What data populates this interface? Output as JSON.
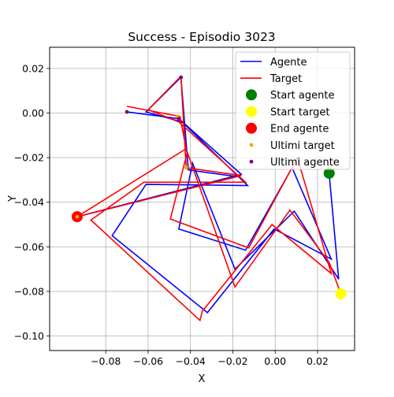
{
  "chart_data": {
    "type": "line",
    "title": "Success - Episodio 3023",
    "xlabel": "X",
    "ylabel": "Y",
    "xlim": [
      -0.1065,
      0.0375
    ],
    "ylim": [
      -0.1065,
      0.0295
    ],
    "xticks": [
      -0.08,
      -0.06,
      -0.04,
      -0.02,
      0.0,
      0.02
    ],
    "xtick_labels": [
      "−0.08",
      "−0.06",
      "−0.04",
      "−0.02",
      "0.00",
      "0.02"
    ],
    "yticks": [
      0.02,
      0.0,
      -0.02,
      -0.04,
      -0.06,
      -0.08,
      -0.1
    ],
    "ytick_labels": [
      "0.02",
      "0.00",
      "−0.02",
      "−0.04",
      "−0.06",
      "−0.08",
      "−0.10"
    ],
    "grid": true,
    "legend_position": "top-right",
    "series": [
      {
        "name": "Agente",
        "kind": "line",
        "color": "#0000ff",
        "points": [
          [
            0.0255,
            -0.0275
          ],
          [
            0.03,
            -0.0745
          ],
          [
            0.009,
            -0.044
          ],
          [
            -0.019,
            -0.07
          ],
          [
            -0.039,
            -0.0225
          ],
          [
            -0.0455,
            -0.052
          ],
          [
            -0.014,
            -0.0615
          ],
          [
            0.008,
            -0.0245
          ],
          [
            0.0265,
            -0.0655
          ],
          [
            -0.0005,
            -0.052
          ],
          [
            -0.032,
            -0.0895
          ],
          [
            -0.077,
            -0.055
          ],
          [
            -0.061,
            -0.032
          ],
          [
            -0.013,
            -0.0325
          ],
          [
            -0.044,
            -0.004
          ],
          [
            -0.061,
            0.0005
          ],
          [
            -0.0445,
            0.016
          ],
          [
            -0.041,
            -0.0255
          ],
          [
            -0.018,
            -0.0285
          ],
          [
            -0.0935,
            -0.0465
          ],
          [
            -0.016,
            -0.0275
          ],
          [
            -0.0455,
            -0.0025
          ],
          [
            -0.07,
            0.0005
          ]
        ]
      },
      {
        "name": "Target",
        "kind": "line",
        "color": "#ff0000",
        "points": [
          [
            0.031,
            -0.081
          ],
          [
            0.0255,
            -0.067
          ],
          [
            0.007,
            -0.0435
          ],
          [
            -0.019,
            -0.078
          ],
          [
            -0.0415,
            -0.0175
          ],
          [
            -0.0495,
            -0.0475
          ],
          [
            -0.0125,
            -0.0605
          ],
          [
            0.0105,
            -0.02
          ],
          [
            0.0265,
            -0.072
          ],
          [
            -0.0015,
            -0.05
          ],
          [
            -0.0345,
            -0.089
          ],
          [
            -0.0345,
            -0.089
          ],
          [
            -0.0345,
            -0.089
          ],
          [
            -0.0345,
            -0.089
          ],
          [
            -0.0345,
            -0.089
          ],
          [
            -0.0345,
            -0.089
          ],
          [
            -0.0345,
            -0.089
          ],
          [
            -0.0345,
            -0.089
          ],
          [
            -0.0345,
            -0.089
          ],
          [
            -0.0345,
            -0.089
          ],
          [
            -0.0345,
            -0.089
          ],
          [
            -0.0355,
            -0.093
          ],
          [
            -0.087,
            -0.048
          ],
          [
            -0.062,
            -0.031
          ],
          [
            -0.014,
            -0.031
          ],
          [
            -0.0455,
            -0.004
          ],
          [
            -0.06,
            0.0015
          ],
          [
            -0.0445,
            0.0165
          ],
          [
            -0.042,
            -0.0245
          ],
          [
            -0.016,
            -0.028
          ],
          [
            -0.0935,
            -0.0465
          ],
          [
            -0.042,
            -0.016
          ],
          [
            -0.045,
            -0.0015
          ],
          [
            -0.07,
            0.003
          ]
        ]
      },
      {
        "name": "Start agente",
        "kind": "marker",
        "color": "#008000",
        "points": [
          [
            0.0255,
            -0.027
          ]
        ]
      },
      {
        "name": "Start target",
        "kind": "marker",
        "color": "#ffff00",
        "points": [
          [
            0.031,
            -0.081
          ]
        ]
      },
      {
        "name": "End agente",
        "kind": "marker",
        "color": "#ff0000",
        "points": [
          [
            -0.0935,
            -0.0465
          ]
        ]
      },
      {
        "name": "Ultimi target",
        "kind": "small-marker",
        "color": "#ffa500",
        "points": [
          [
            -0.0445,
            0.016
          ],
          [
            -0.042,
            -0.0245
          ],
          [
            -0.0935,
            -0.0465
          ],
          [
            -0.046,
            -0.0015
          ],
          [
            -0.07,
            0.0005
          ]
        ]
      },
      {
        "name": "Ultimi agente",
        "kind": "small-marker",
        "color": "#800080",
        "points": [
          [
            -0.0445,
            0.016
          ],
          [
            -0.0455,
            -0.0025
          ],
          [
            -0.07,
            0.0005
          ]
        ]
      }
    ]
  }
}
